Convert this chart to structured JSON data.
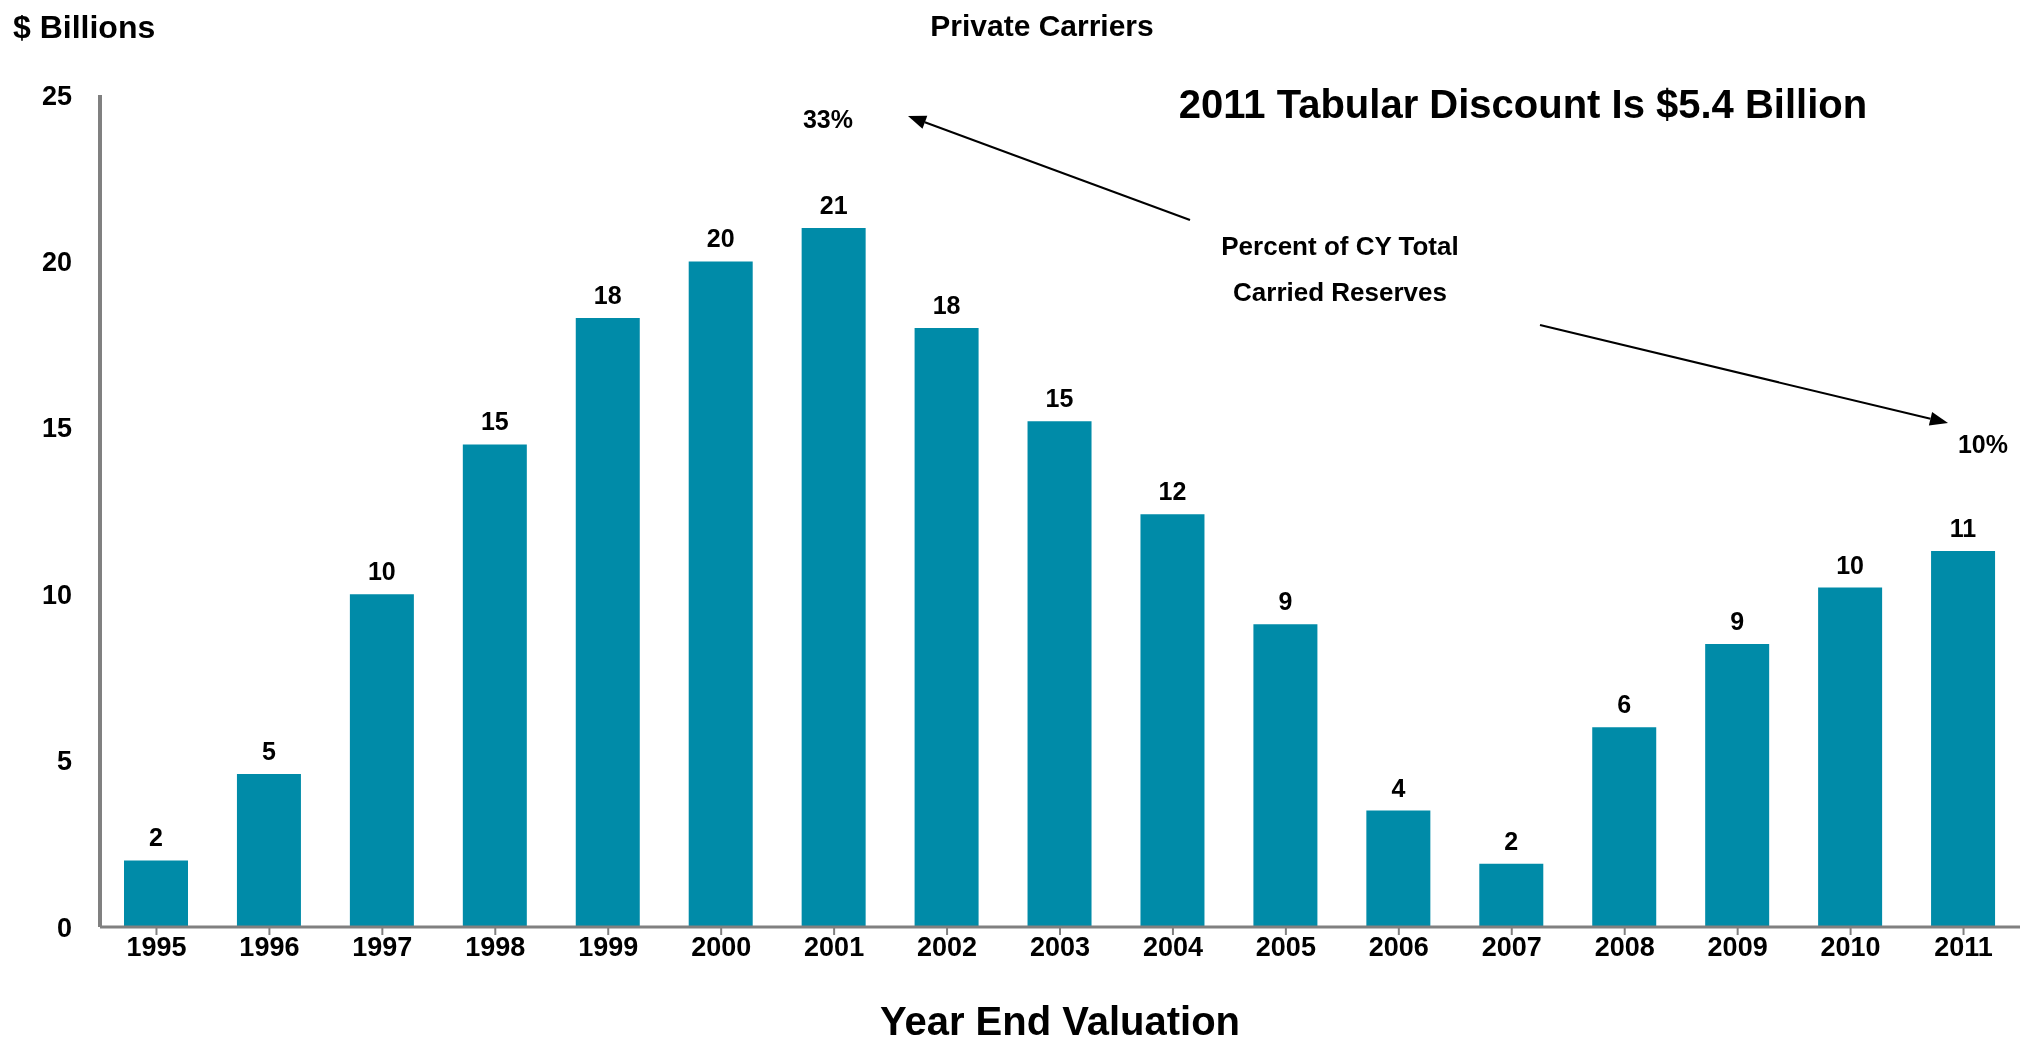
{
  "chart_data": {
    "type": "bar",
    "title": "Private Carriers",
    "subtitle": "2011 Tabular Discount Is $5.4 Billion",
    "xlabel": "Year End Valuation",
    "ylabel": "$ Billions",
    "categories": [
      "1995",
      "1996",
      "1997",
      "1998",
      "1999",
      "2000",
      "2001",
      "2002",
      "2003",
      "2004",
      "2005",
      "2006",
      "2007",
      "2008",
      "2009",
      "2010",
      "2011"
    ],
    "values": [
      2.0,
      4.6,
      10.0,
      14.5,
      18.3,
      20.0,
      21.0,
      18.0,
      15.2,
      12.4,
      9.1,
      3.5,
      1.9,
      6.0,
      8.5,
      10.2,
      11.3
    ],
    "value_labels": [
      "2",
      "5",
      "10",
      "15",
      "18",
      "20",
      "21",
      "18",
      "15",
      "12",
      "9",
      "4",
      "2",
      "6",
      "9",
      "10",
      "11"
    ],
    "color": "#008ba8",
    "ylim": [
      0,
      25
    ],
    "yticks": [
      0,
      5,
      10,
      15,
      20,
      25
    ],
    "grid": false,
    "legend": false,
    "annotations": [
      "33%",
      "10%",
      "Percent of CY Total Carried Reserves"
    ]
  }
}
